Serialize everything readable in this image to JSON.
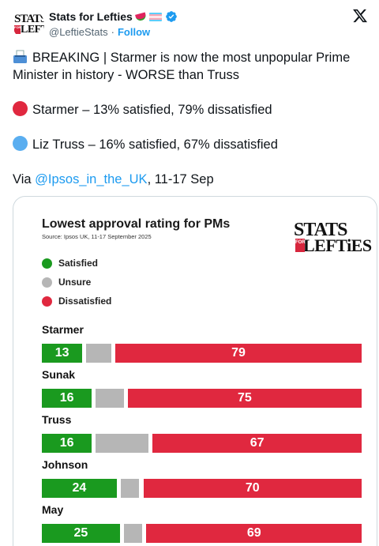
{
  "author": {
    "display_name": "Stats for Lefties",
    "handle": "@LeftieStats",
    "separator": "·",
    "follow_label": "Follow",
    "logo_top": "STATS",
    "logo_bottom": "LEFTiES",
    "logo_tag": "FOR"
  },
  "tweet": {
    "line1": "BREAKING | Starmer is now the most unpopular Prime Minister in history - WORSE than Truss",
    "line2": "Starmer – 13% satisfied, 79% dissatisfied",
    "line3": "Liz Truss – 16% satisfied, 67% dissatisfied",
    "via_prefix": "Via ",
    "via_mention": "@Ipsos_in_the_UK",
    "via_suffix": ", 11-17 Sep"
  },
  "colors": {
    "satisfied": "#1a9a1f",
    "unsure": "#b6b6b6",
    "dissatisfied": "#e0283f",
    "link": "#1d9bf0",
    "red_dot": "#e0283f",
    "blue_dot": "#5aaef0"
  },
  "chart_data": {
    "type": "bar",
    "stacked": true,
    "orientation": "horizontal",
    "title": "Lowest approval rating for PMs",
    "subtitle": "Source: Ipsos UK, 11-17 September 2025",
    "legend": [
      "Satisfied",
      "Unsure",
      "Dissatisfied"
    ],
    "legend_placement": "top-left",
    "categories": [
      "Starmer",
      "Sunak",
      "Truss",
      "Johnson",
      "May"
    ],
    "series": [
      {
        "name": "Satisfied",
        "values": [
          13,
          16,
          16,
          24,
          25
        ]
      },
      {
        "name": "Unsure",
        "values": [
          8,
          9,
          17,
          6,
          6
        ]
      },
      {
        "name": "Dissatisfied",
        "values": [
          79,
          75,
          67,
          70,
          69
        ]
      }
    ],
    "value_labels_shown": [
      "Satisfied",
      "Dissatisfied"
    ]
  }
}
